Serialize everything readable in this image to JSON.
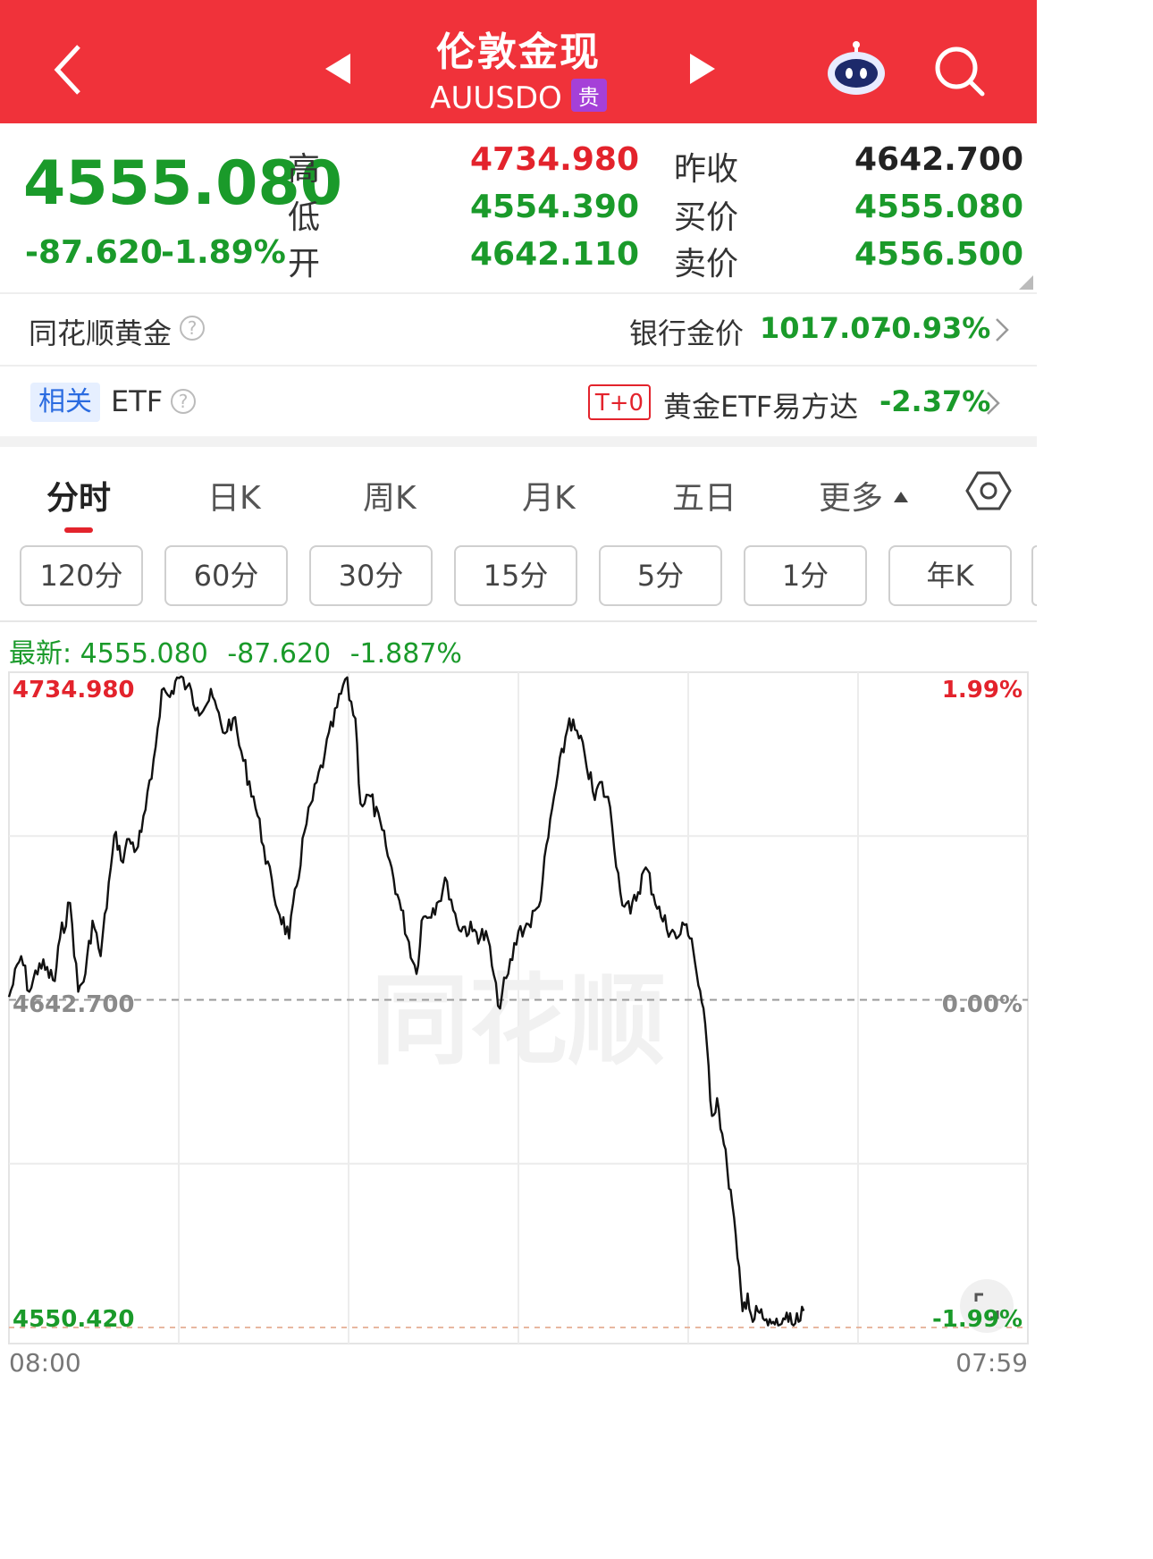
{
  "header": {
    "title": "伦敦金现",
    "symbol": "AUUSDO",
    "badge": "贵"
  },
  "quote": {
    "last": "4555.080",
    "change": "-87.620",
    "change_pct": "-1.89%",
    "labels": {
      "high": "高",
      "low": "低",
      "open": "开",
      "prev_close": "昨收",
      "bid": "买价",
      "ask": "卖价"
    },
    "high": "4734.980",
    "low": "4554.390",
    "open": "4642.110",
    "prev_close": "4642.700",
    "bid": "4555.080",
    "ask": "4556.500",
    "colors": {
      "up": "#e3232c",
      "down": "#1a9a2a",
      "header": "#f0323a"
    }
  },
  "gold_row": {
    "label": "同花顺黄金",
    "bank_label": "银行金价",
    "bank_price": "1017.07",
    "bank_change": "-0.93%"
  },
  "etf_row": {
    "tag": "相关",
    "label": "ETF",
    "t0": "T+0",
    "name": "黄金ETF易方达",
    "change": "-2.37%"
  },
  "tabs": [
    "分时",
    "日K",
    "周K",
    "月K",
    "五日",
    "更多"
  ],
  "active_tab": "分时",
  "period_buttons": [
    "120分",
    "60分",
    "30分",
    "15分",
    "5分",
    "1分",
    "年K"
  ],
  "latest": {
    "label": "最新:",
    "price": "4555.080",
    "change": "-87.620",
    "pct": "-1.887%"
  },
  "chart_axis": {
    "top_price": "4734.980",
    "mid_price": "4642.700",
    "bottom_price": "4550.420",
    "top_pct": "1.99%",
    "mid_pct": "0.00%",
    "bottom_pct": "-1.99%",
    "start_time": "08:00",
    "end_time": "07:59"
  },
  "chart_data": {
    "type": "line",
    "xlabel": "",
    "ylabel": "",
    "x_range": [
      "08:00",
      "07:59"
    ],
    "ylim": [
      4550.42,
      4734.98
    ],
    "reference_line": 4642.7,
    "grid": true,
    "series": [
      {
        "x": [
          0,
          0.012,
          0.02,
          0.03,
          0.045,
          0.05,
          0.06,
          0.068,
          0.075,
          0.082,
          0.09,
          0.1,
          0.105,
          0.11,
          0.118,
          0.125,
          0.13,
          0.14,
          0.15,
          0.158,
          0.165,
          0.175,
          0.185,
          0.2,
          0.21,
          0.22,
          0.23,
          0.24,
          0.25,
          0.26,
          0.275,
          0.29,
          0.31,
          0.33,
          0.34,
          0.345,
          0.355,
          0.37,
          0.385,
          0.4,
          0.405,
          0.42,
          0.43,
          0.44,
          0.455,
          0.47,
          0.48,
          0.49,
          0.5,
          0.51,
          0.52,
          0.535,
          0.55,
          0.565,
          0.575,
          0.58,
          0.59,
          0.6,
          0.61,
          0.625,
          0.64,
          0.655,
          0.665,
          0.67,
          0.675,
          0.68,
          0.685,
          0.69,
          0.695,
          0.7,
          0.705,
          0.71,
          0.715,
          0.72,
          0.725,
          0.73,
          0.735,
          0.74,
          0.745,
          0.75,
          0.755,
          0.76,
          0.765,
          0.77,
          0.775,
          0.78
        ],
        "y": [
          4643.5,
          4655.0,
          4645.0,
          4653.0,
          4648.0,
          4660.0,
          4670.0,
          4645.0,
          4650.0,
          4665.0,
          4655.0,
          4680.0,
          4690.0,
          4682.0,
          4688.0,
          4685.0,
          4690.0,
          4705.0,
          4730.0,
          4728.0,
          4733.5,
          4731.0,
          4725.0,
          4728.0,
          4718.0,
          4722.0,
          4710.0,
          4700.0,
          4686.0,
          4672.0,
          4660.0,
          4690.0,
          4712.0,
          4733.0,
          4722.0,
          4698.0,
          4700.0,
          4686.0,
          4668.0,
          4650.0,
          4665.0,
          4670.0,
          4676.0,
          4664.0,
          4662.0,
          4660.0,
          4641.0,
          4650.0,
          4662.0,
          4664.0,
          4669.0,
          4700.0,
          4722.0,
          4712.0,
          4699.0,
          4704.0,
          4697.0,
          4673.0,
          4667.0,
          4680.0,
          4666.0,
          4660.0,
          4664.0,
          4660.0,
          4650.0,
          4642.0,
          4630.0,
          4610.0,
          4615.0,
          4605.0,
          4595.0,
          4585.0,
          4570.0,
          4555.0,
          4560.0,
          4552.0,
          4555.0,
          4553.0,
          4551.0,
          4552.0,
          4551.0,
          4553.0,
          4552.0,
          4551.0,
          4552.0,
          4555.08
        ]
      }
    ]
  }
}
